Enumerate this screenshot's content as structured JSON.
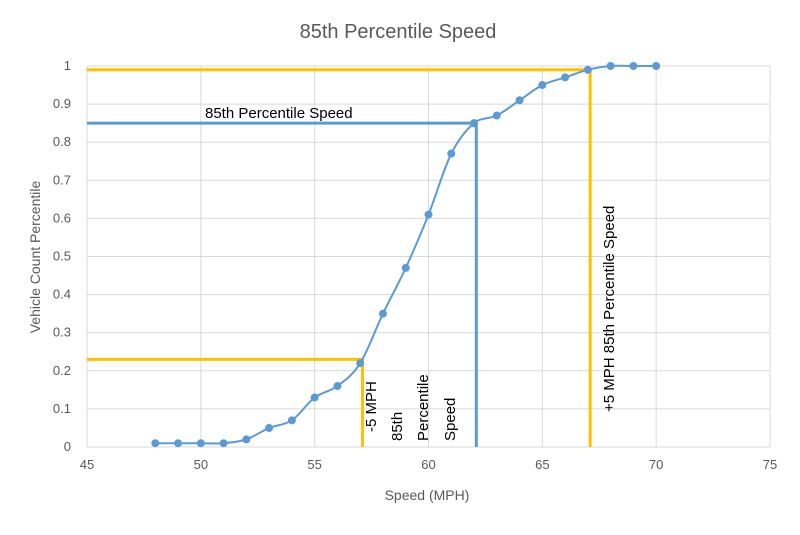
{
  "chart_data": {
    "type": "line",
    "title": "85th Percentile Speed",
    "xlabel": "Speed (MPH)",
    "ylabel": "Vehicle Count Percentile",
    "xlim": [
      45,
      75
    ],
    "ylim": [
      0,
      1
    ],
    "x_ticks": [
      "45",
      "50",
      "55",
      "60",
      "65",
      "70",
      "75"
    ],
    "y_ticks": [
      "0",
      "0.1",
      "0.2",
      "0.3",
      "0.4",
      "0.5",
      "0.6",
      "0.7",
      "0.8",
      "0.9",
      "1"
    ],
    "grid": true,
    "series": [
      {
        "x": [
          48,
          49,
          50,
          51,
          52,
          53,
          54,
          55,
          56,
          57,
          58,
          59,
          60,
          61,
          62,
          63,
          64,
          65,
          66,
          67,
          68,
          69,
          70
        ],
        "y": [
          0.01,
          0.01,
          0.01,
          0.01,
          0.02,
          0.05,
          0.07,
          0.13,
          0.16,
          0.22,
          0.35,
          0.47,
          0.61,
          0.77,
          0.85,
          0.87,
          0.91,
          0.95,
          0.97,
          0.99,
          1.0,
          1.0,
          1.0
        ]
      }
    ],
    "reference_lines": [
      {
        "label": "85th Percentile Speed",
        "speed": 62.1,
        "percentile": 0.85,
        "color": "#5b9bd5"
      },
      {
        "label": "-5 MPH 85th Percentile Speed",
        "speed": 57.1,
        "percentile": 0.23,
        "color": "#ffc000"
      },
      {
        "label": "+5 MPH 85th Percentile Speed",
        "speed": 67.1,
        "percentile": 0.99,
        "color": "#ffc000"
      }
    ],
    "annotations": {
      "p85_horizontal": "85th Percentile Speed",
      "minus5_lines": [
        "-5 MPH",
        "85th",
        "Percentile",
        "Speed"
      ],
      "plus5_vertical": "+5 MPH 85th Percentile Speed"
    },
    "colors": {
      "series": "#5b9bd5",
      "p85": "#5b9bd5",
      "offset": "#ffc000"
    }
  }
}
